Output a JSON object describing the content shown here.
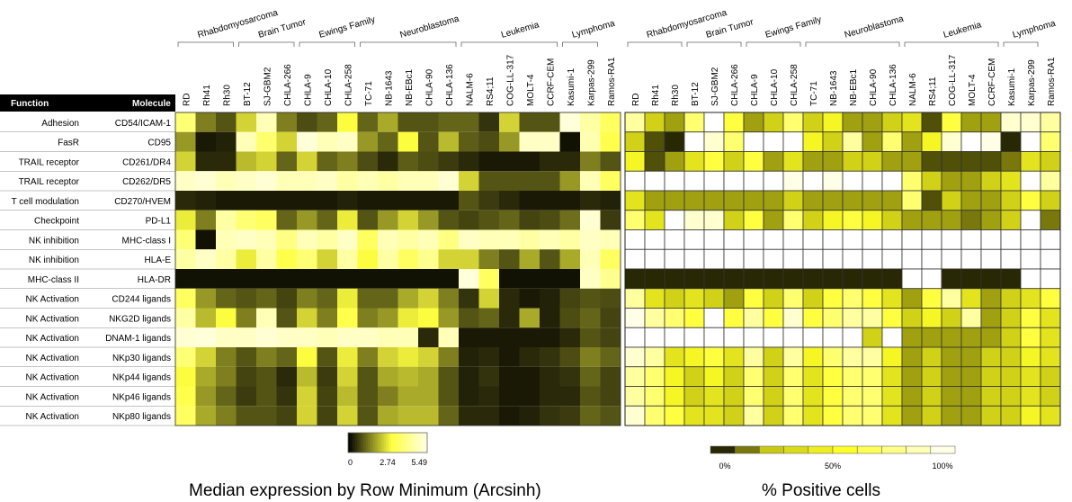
{
  "chart_data": [
    {
      "type": "heatmap",
      "title": "Median expression by Row Minimum (Arcsinh)",
      "header": {
        "function": "Function",
        "molecule": "Molecule"
      },
      "groups": [
        {
          "name": "Rhabdomyosarcoma",
          "span": [
            0,
            2
          ]
        },
        {
          "name": "Brain Tumor",
          "span": [
            3,
            5
          ]
        },
        {
          "name": "Ewings Family",
          "span": [
            6,
            8
          ]
        },
        {
          "name": "Neuroblastoma",
          "span": [
            9,
            13
          ]
        },
        {
          "name": "Leukemia",
          "span": [
            14,
            18
          ]
        },
        {
          "name": "Lymphoma",
          "span": [
            19,
            20
          ]
        }
      ],
      "columns": [
        "RD",
        "Rh41",
        "Rh30",
        "BT-12",
        "SJ-GBM2",
        "CHLA-266",
        "CHLA-9",
        "CHLA-10",
        "CHLA-258",
        "TC-71",
        "NB-1643",
        "NB-EBc1",
        "CHLA-90",
        "CHLA-136",
        "NALM-6",
        "RS4;11",
        "COG-LL-317",
        "MOLT-4",
        "CCRF-CEM",
        "Kasumi-1",
        "Karpas-299",
        "Ramos-RA1"
      ],
      "rows": [
        {
          "function": "Adhesion",
          "molecule": "CD54/ICAM-1"
        },
        {
          "function": "FasR",
          "molecule": "CD95"
        },
        {
          "function": "TRAIL receptor",
          "molecule": "CD261/DR4"
        },
        {
          "function": "TRAIL receptor",
          "molecule": "CD262/DR5"
        },
        {
          "function": "T cell modulation",
          "molecule": "CD270/HVEM"
        },
        {
          "function": "Checkpoint",
          "molecule": "PD-L1"
        },
        {
          "function": "NK inhibition",
          "molecule": "MHC-class I"
        },
        {
          "function": "NK inhibition",
          "molecule": "HLA-E"
        },
        {
          "function": "MHC-class II",
          "molecule": "HLA-DR"
        },
        {
          "function": "NK Activation",
          "molecule": "CD244 ligands"
        },
        {
          "function": "NK Activation",
          "molecule": "NKG2D ligands"
        },
        {
          "function": "NK Activation",
          "molecule": "DNAM-1 ligands"
        },
        {
          "function": "NK Activation",
          "molecule": "NKp30 ligands"
        },
        {
          "function": "NK Activation",
          "molecule": "NKp44 ligands"
        },
        {
          "function": "NK Activation",
          "molecule": "NKp46 ligands"
        },
        {
          "function": "NK Activation",
          "molecule": "NKp80 ligands"
        }
      ],
      "values": [
        [
          3.8,
          1.5,
          1.0,
          2.5,
          4.8,
          1.5,
          0.9,
          1.2,
          3.0,
          1.2,
          2.0,
          1.0,
          1.0,
          1.2,
          1.2,
          0.6,
          2.5,
          1.0,
          1.0,
          5.3,
          4.5,
          3.5
        ],
        [
          1.8,
          0.3,
          0.4,
          4.8,
          3.7,
          2.5,
          5.3,
          4.8,
          5.0,
          1.8,
          1.2,
          3.0,
          1.0,
          2.2,
          1.1,
          0.9,
          1.8,
          5.0,
          5.0,
          0.2,
          4.7,
          3.2
        ],
        [
          2.5,
          0.5,
          0.5,
          2.2,
          2.5,
          1.2,
          2.5,
          1.2,
          1.5,
          0.9,
          0.5,
          1.1,
          0.9,
          0.7,
          0.5,
          0.3,
          0.3,
          0.3,
          0.5,
          0.5,
          1.5,
          1.0
        ],
        [
          5.0,
          5.2,
          4.8,
          5.0,
          5.2,
          4.8,
          4.8,
          5.0,
          4.5,
          4.8,
          4.5,
          4.8,
          4.8,
          5.2,
          2.5,
          1.0,
          1.0,
          1.0,
          1.0,
          1.8,
          4.8,
          3.5
        ],
        [
          0.5,
          0.4,
          0.3,
          0.3,
          0.3,
          0.3,
          0.3,
          0.3,
          0.4,
          0.3,
          0.3,
          0.3,
          0.3,
          0.3,
          1.0,
          0.7,
          0.5,
          0.3,
          0.3,
          0.3,
          0.5,
          0.4
        ],
        [
          2.8,
          1.5,
          4.5,
          3.8,
          3.5,
          1.2,
          1.8,
          1.2,
          2.8,
          1.0,
          1.8,
          2.5,
          1.8,
          1.0,
          0.8,
          1.0,
          1.2,
          0.8,
          0.9,
          1.3,
          5.2,
          0.7
        ],
        [
          3.8,
          0.2,
          4.8,
          5.0,
          4.8,
          4.0,
          4.8,
          4.5,
          5.0,
          3.5,
          4.8,
          4.5,
          4.8,
          4.0,
          5.0,
          4.8,
          4.8,
          4.5,
          4.8,
          4.5,
          5.0,
          4.8
        ],
        [
          4.5,
          5.0,
          4.5,
          2.8,
          4.5,
          3.2,
          3.8,
          2.5,
          4.5,
          3.0,
          4.5,
          3.5,
          4.2,
          2.5,
          2.5,
          1.5,
          1.0,
          2.0,
          1.0,
          2.0,
          4.8,
          3.5
        ],
        [
          0.2,
          0.2,
          0.2,
          0.2,
          0.2,
          0.2,
          0.2,
          0.2,
          0.2,
          0.2,
          0.2,
          0.2,
          0.2,
          0.2,
          5.3,
          3.5,
          0.2,
          0.2,
          0.2,
          0.2,
          5.0,
          4.2
        ],
        [
          3.5,
          1.8,
          1.2,
          1.0,
          1.2,
          0.8,
          1.5,
          1.2,
          2.8,
          1.2,
          1.2,
          2.0,
          2.5,
          1.5,
          0.6,
          2.5,
          0.5,
          0.3,
          0.4,
          0.8,
          1.0,
          0.9
        ],
        [
          4.5,
          2.2,
          3.0,
          1.5,
          4.8,
          1.0,
          2.5,
          1.5,
          3.2,
          1.5,
          1.8,
          2.8,
          3.0,
          1.8,
          1.0,
          1.2,
          0.5,
          2.0,
          0.4,
          0.9,
          1.2,
          0.8
        ],
        [
          5.2,
          5.3,
          5.0,
          5.0,
          5.2,
          5.0,
          5.0,
          4.8,
          5.0,
          5.0,
          4.8,
          4.8,
          0.5,
          4.8,
          0.3,
          0.3,
          0.3,
          0.3,
          0.3,
          0.5,
          1.0,
          0.8
        ],
        [
          3.8,
          2.5,
          1.5,
          1.0,
          1.5,
          1.2,
          3.0,
          1.0,
          2.8,
          1.5,
          2.5,
          2.8,
          2.5,
          1.5,
          0.4,
          0.5,
          0.3,
          0.5,
          0.6,
          0.9,
          1.5,
          1.2
        ],
        [
          3.0,
          2.0,
          1.5,
          0.8,
          1.0,
          0.5,
          2.2,
          0.7,
          2.5,
          1.0,
          2.0,
          2.2,
          2.0,
          1.0,
          0.4,
          0.6,
          0.3,
          0.3,
          0.5,
          0.6,
          1.2,
          0.8
        ],
        [
          3.2,
          1.8,
          1.2,
          0.7,
          1.0,
          0.6,
          2.5,
          0.8,
          2.2,
          1.0,
          1.5,
          2.0,
          2.0,
          1.0,
          0.4,
          0.5,
          0.3,
          0.3,
          0.5,
          0.5,
          1.0,
          0.8
        ],
        [
          3.5,
          2.0,
          1.5,
          1.0,
          1.0,
          0.8,
          2.5,
          0.8,
          2.5,
          1.0,
          2.0,
          2.2,
          2.2,
          1.2,
          0.5,
          0.5,
          0.3,
          0.4,
          0.6,
          0.7,
          1.2,
          1.0
        ]
      ],
      "colorbar": {
        "min": 0,
        "max": 5.49,
        "ticks": [
          "0",
          "2.74",
          "5.49"
        ],
        "colors": [
          "#000000",
          "#ffff40",
          "#ffffe6"
        ]
      }
    },
    {
      "type": "heatmap",
      "title": "% Positive cells",
      "groups": [
        {
          "name": "Rhabdomyosarcoma",
          "span": [
            0,
            2
          ]
        },
        {
          "name": "Brain Tumor",
          "span": [
            3,
            5
          ]
        },
        {
          "name": "Ewings Family",
          "span": [
            6,
            8
          ]
        },
        {
          "name": "Neuroblastoma",
          "span": [
            9,
            13
          ]
        },
        {
          "name": "Leukemia",
          "span": [
            14,
            18
          ]
        },
        {
          "name": "Lymphoma",
          "span": [
            19,
            20
          ]
        }
      ],
      "columns": [
        "RD",
        "Rh41",
        "Rh30",
        "BT-12",
        "SJ-GBM2",
        "CHLA-266",
        "CHLA-9",
        "CHLA-10",
        "CHLA-258",
        "TC-71",
        "NB-1643",
        "NB-EBc1",
        "CHLA-90",
        "CHLA-136",
        "NALM-6",
        "RS4;11",
        "COG-LL-317",
        "MOLT-4",
        "CCRF-CEM",
        "Kasumi-1",
        "Karpas-299",
        "Ramos-RA1"
      ],
      "values": [
        [
          80,
          30,
          20,
          70,
          100,
          60,
          20,
          30,
          70,
          30,
          50,
          20,
          20,
          30,
          40,
          10,
          60,
          20,
          20,
          90,
          90,
          80
        ],
        [
          30,
          10,
          5,
          100,
          90,
          70,
          100,
          100,
          100,
          50,
          30,
          80,
          20,
          70,
          20,
          50,
          90,
          100,
          95,
          5,
          100,
          70
        ],
        [
          50,
          10,
          20,
          40,
          60,
          30,
          60,
          20,
          40,
          20,
          20,
          30,
          30,
          20,
          20,
          10,
          10,
          10,
          10,
          15,
          40,
          30
        ],
        [
          100,
          100,
          100,
          100,
          100,
          100,
          100,
          100,
          95,
          100,
          95,
          100,
          100,
          100,
          70,
          30,
          20,
          20,
          30,
          40,
          100,
          80
        ],
        [
          40,
          20,
          20,
          20,
          20,
          20,
          20,
          20,
          30,
          20,
          20,
          20,
          20,
          20,
          70,
          10,
          30,
          20,
          20,
          30,
          60,
          30
        ],
        [
          70,
          40,
          100,
          90,
          90,
          30,
          60,
          20,
          70,
          30,
          50,
          60,
          50,
          30,
          20,
          20,
          20,
          15,
          20,
          30,
          100,
          15
        ],
        [
          100,
          100,
          100,
          100,
          100,
          100,
          100,
          100,
          100,
          100,
          100,
          100,
          100,
          100,
          100,
          100,
          100,
          100,
          100,
          100,
          100,
          100
        ],
        [
          100,
          100,
          100,
          100,
          100,
          100,
          100,
          100,
          100,
          100,
          100,
          100,
          100,
          100,
          100,
          100,
          100,
          100,
          100,
          100,
          100,
          100
        ],
        [
          5,
          5,
          5,
          5,
          5,
          5,
          5,
          5,
          5,
          5,
          5,
          5,
          5,
          5,
          100,
          100,
          5,
          5,
          5,
          5,
          100,
          100
        ],
        [
          80,
          40,
          30,
          40,
          30,
          20,
          60,
          30,
          70,
          30,
          60,
          70,
          60,
          40,
          20,
          60,
          80,
          40,
          20,
          30,
          40,
          60
        ],
        [
          95,
          80,
          70,
          60,
          100,
          60,
          80,
          60,
          90,
          60,
          70,
          80,
          80,
          60,
          30,
          50,
          30,
          80,
          20,
          30,
          60,
          40
        ],
        [
          100,
          100,
          100,
          100,
          100,
          100,
          100,
          100,
          100,
          100,
          100,
          100,
          30,
          100,
          20,
          20,
          20,
          20,
          20,
          30,
          60,
          40
        ],
        [
          90,
          80,
          40,
          50,
          60,
          40,
          80,
          30,
          80,
          50,
          70,
          80,
          80,
          50,
          20,
          30,
          20,
          20,
          30,
          30,
          50,
          40
        ],
        [
          80,
          70,
          50,
          30,
          50,
          30,
          70,
          30,
          70,
          40,
          60,
          70,
          70,
          40,
          20,
          30,
          20,
          20,
          30,
          30,
          40,
          30
        ],
        [
          80,
          70,
          50,
          30,
          40,
          30,
          70,
          30,
          70,
          40,
          60,
          70,
          70,
          40,
          20,
          30,
          20,
          20,
          30,
          30,
          40,
          30
        ],
        [
          90,
          70,
          60,
          40,
          40,
          30,
          80,
          30,
          70,
          40,
          60,
          70,
          70,
          40,
          20,
          30,
          20,
          20,
          30,
          30,
          50,
          40
        ]
      ],
      "colorbar": {
        "min": 0,
        "max": 100,
        "ticks": [
          "0%",
          "50%",
          "100%"
        ],
        "steps": 10
      }
    }
  ]
}
